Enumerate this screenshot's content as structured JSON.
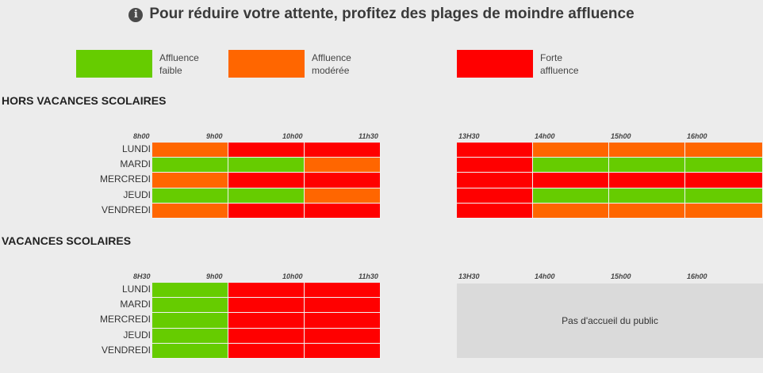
{
  "heading": {
    "icon": "info-icon",
    "text": "Pour réduire votre attente, profitez des plages de moindre affluence"
  },
  "colors": {
    "faible": "#66cc00",
    "moderee": "#ff6600",
    "forte": "#ff0000",
    "background": "#ececec",
    "closed": "#dadada"
  },
  "legend": [
    {
      "level": "faible",
      "line1": "Affluence",
      "line2": "faible"
    },
    {
      "level": "moderee",
      "line1": "Affluence",
      "line2": "modérée"
    },
    {
      "level": "forte",
      "line1": "Forte",
      "line2": "affluence"
    }
  ],
  "hors_vacances": {
    "title": "HORS VACANCES SCOLAIRES",
    "morning_hours": [
      "8h00",
      "9h00",
      "10h00",
      "11h30"
    ],
    "afternoon_hours": [
      "13H30",
      "14h00",
      "15h00",
      "16h00"
    ],
    "days": [
      "LUNDI",
      "MARDI",
      "MERCREDI",
      "JEUDI",
      "VENDREDI"
    ],
    "morning": [
      [
        "moderee",
        "forte",
        "forte"
      ],
      [
        "faible",
        "faible",
        "moderee"
      ],
      [
        "moderee",
        "forte",
        "forte"
      ],
      [
        "faible",
        "faible",
        "moderee"
      ],
      [
        "moderee",
        "forte",
        "forte"
      ]
    ],
    "afternoon": [
      [
        "forte",
        "moderee",
        "moderee",
        "moderee"
      ],
      [
        "forte",
        "faible",
        "faible",
        "faible"
      ],
      [
        "forte",
        "forte",
        "forte",
        "forte"
      ],
      [
        "forte",
        "faible",
        "faible",
        "faible"
      ],
      [
        "forte",
        "moderee",
        "moderee",
        "moderee"
      ]
    ]
  },
  "vacances": {
    "title": "VACANCES SCOLAIRES",
    "morning_hours": [
      "8H30",
      "9h00",
      "10h00",
      "11h30"
    ],
    "afternoon_hours": [
      "13H30",
      "14h00",
      "15h00",
      "16h00"
    ],
    "days": [
      "LUNDI",
      "MARDI",
      "MERCREDI",
      "JEUDI",
      "VENDREDI"
    ],
    "morning": [
      [
        "faible",
        "forte",
        "forte"
      ],
      [
        "faible",
        "forte",
        "forte"
      ],
      [
        "faible",
        "forte",
        "forte"
      ],
      [
        "faible",
        "forte",
        "forte"
      ],
      [
        "faible",
        "forte",
        "forte"
      ]
    ],
    "closed_text": "Pas d'accueil du public"
  }
}
